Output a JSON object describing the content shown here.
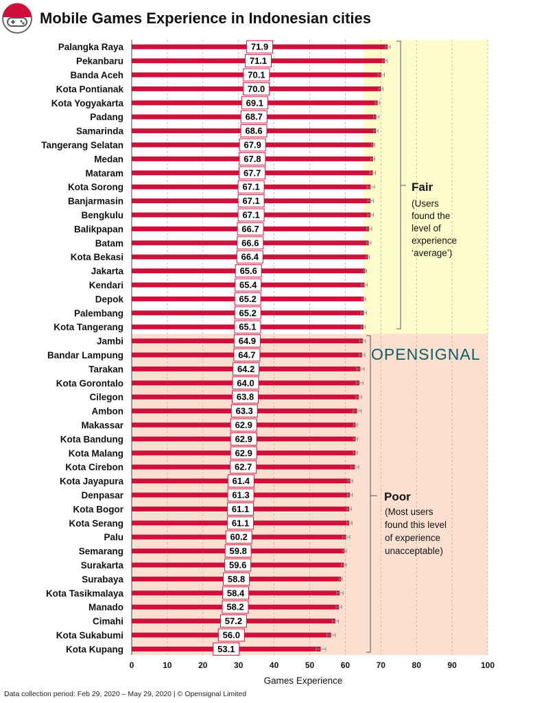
{
  "colors": {
    "bar": "#d0103a",
    "fair_bg": "#fdfdcc",
    "poor_bg": "#fbe0d0",
    "grid": "#b0b0b0",
    "error_bar": "#888888",
    "brand": "#0a5f66"
  },
  "icon": "gamepad-icon",
  "brand_label": "OPENSIGNAL",
  "footer": "Data collection period: Feb 29, 2020 – May 29, 2020 | © Opensignal Limited",
  "zones": {
    "fair": {
      "title": "Fair",
      "description": [
        "(Users",
        "found the",
        "level of",
        "experience",
        "‘average’)"
      ]
    },
    "poor": {
      "title": "Poor",
      "description": [
        "(Most users",
        "found this level",
        "of experience",
        "unacceptable)"
      ]
    }
  },
  "chart_data": {
    "type": "bar",
    "orientation": "horizontal",
    "title": "Mobile Games Experience in Indonesian cities",
    "xlabel": "Games Experience",
    "ylabel": "",
    "xlim": [
      0,
      100
    ],
    "xticks": [
      0,
      10,
      20,
      30,
      40,
      50,
      60,
      70,
      80,
      90,
      100
    ],
    "grid": true,
    "categories": [
      "Palangka Raya",
      "Pekanbaru",
      "Banda Aceh",
      "Kota Pontianak",
      "Kota Yogyakarta",
      "Padang",
      "Samarinda",
      "Tangerang Selatan",
      "Medan",
      "Mataram",
      "Kota Sorong",
      "Banjarmasin",
      "Bengkulu",
      "Balikpapan",
      "Batam",
      "Kota Bekasi",
      "Jakarta",
      "Kendari",
      "Depok",
      "Palembang",
      "Kota Tangerang",
      "Jambi",
      "Bandar Lampung",
      "Tarakan",
      "Kota Gorontalo",
      "Cilegon",
      "Ambon",
      "Makassar",
      "Kota Bandung",
      "Kota Malang",
      "Kota Cirebon",
      "Kota Jayapura",
      "Denpasar",
      "Kota Bogor",
      "Kota Serang",
      "Palu",
      "Semarang",
      "Surakarta",
      "Surabaya",
      "Kota Tasikmalaya",
      "Manado",
      "Cimahi",
      "Kota Sukabumi",
      "Kota Kupang"
    ],
    "values": [
      71.9,
      71.1,
      70.1,
      70.0,
      69.1,
      68.7,
      68.6,
      67.9,
      67.8,
      67.7,
      67.1,
      67.1,
      67.1,
      66.7,
      66.6,
      66.4,
      65.6,
      65.4,
      65.2,
      65.2,
      65.1,
      64.9,
      64.7,
      64.2,
      64.0,
      63.8,
      63.3,
      62.9,
      62.9,
      62.9,
      62.7,
      61.4,
      61.3,
      61.1,
      61.1,
      60.2,
      59.8,
      59.6,
      58.8,
      58.4,
      58.2,
      57.2,
      56.0,
      53.1
    ],
    "value_labels": [
      "71.9",
      "71.1",
      "70.1",
      "70.0",
      "69.1",
      "68.7",
      "68.6",
      "67.9",
      "67.8",
      "67.7",
      "67.1",
      "67.1",
      "67.1",
      "66.7",
      "66.6",
      "66.4",
      "65.6",
      "65.4",
      "65.2",
      "65.2",
      "65.1",
      "64.9",
      "64.7",
      "64.2",
      "64.0",
      "63.8",
      "63.3",
      "62.9",
      "62.9",
      "62.9",
      "62.7",
      "61.4",
      "61.3",
      "61.1",
      "61.1",
      "60.2",
      "59.8",
      "59.6",
      "58.8",
      "58.4",
      "58.2",
      "57.2",
      "56.0",
      "53.1"
    ],
    "error_low": [
      71.3,
      70.5,
      69.2,
      69.4,
      68.4,
      67.9,
      68.0,
      67.4,
      67.2,
      66.9,
      66.1,
      66.3,
      66.3,
      66.0,
      66.0,
      65.9,
      65.2,
      64.5,
      64.7,
      64.4,
      64.5,
      64.0,
      63.9,
      63.2,
      63.0,
      63.0,
      62.2,
      62.3,
      62.3,
      62.3,
      61.6,
      60.7,
      60.6,
      60.5,
      60.4,
      59.2,
      59.3,
      58.9,
      58.3,
      57.5,
      57.4,
      56.3,
      54.8,
      51.8
    ],
    "error_high": [
      72.6,
      71.8,
      71.0,
      70.6,
      69.7,
      69.5,
      69.2,
      68.3,
      68.3,
      68.5,
      68.2,
      67.9,
      67.9,
      67.4,
      67.2,
      66.8,
      66.0,
      66.2,
      65.7,
      66.0,
      65.6,
      65.7,
      65.5,
      65.3,
      65.0,
      64.6,
      64.5,
      63.4,
      63.5,
      63.4,
      63.8,
      62.1,
      62.0,
      61.7,
      61.9,
      61.3,
      60.3,
      60.3,
      59.2,
      59.4,
      59.0,
      58.1,
      57.2,
      54.5
    ],
    "bands": [
      {
        "label": "Fair",
        "from_category": "Palangka Raya",
        "to_category": "Kota Tangerang",
        "x_from": 65,
        "x_to": 100
      },
      {
        "label": "Poor",
        "from_category": "Jambi",
        "to_category": "Kota Kupang",
        "x_from": 0,
        "x_to": 100
      }
    ]
  }
}
